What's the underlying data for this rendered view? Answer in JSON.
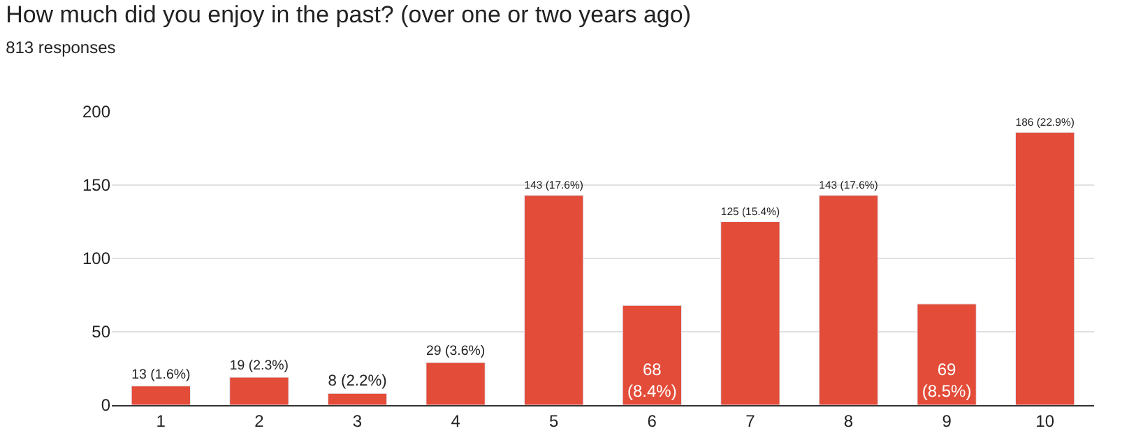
{
  "chart_data": {
    "type": "bar",
    "title": "How much did you enjoy in the past? (over one or two years ago)",
    "subtitle": "813 responses",
    "categories": [
      "1",
      "2",
      "3",
      "4",
      "5",
      "6",
      "7",
      "8",
      "9",
      "10"
    ],
    "values": [
      13,
      19,
      8,
      29,
      143,
      68,
      125,
      143,
      69,
      186
    ],
    "value_labels": [
      "13 (1.6%)",
      "19 (2.3%)",
      "8 (2.2%)",
      "29 (3.6%)",
      "143 (17.6%)",
      "68 (8.4%)",
      "125 (15.4%)",
      "143 (17.6%)",
      "69 (8.5%)",
      "186 (22.9%)"
    ],
    "color": "#e34c39",
    "ylim": [
      0,
      200
    ],
    "yticks": [
      0,
      50,
      100,
      150,
      200
    ],
    "grid": "y",
    "legend": false
  }
}
